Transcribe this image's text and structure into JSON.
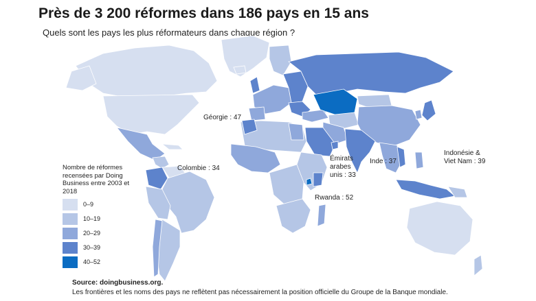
{
  "title": "Près de 3 200 réformes dans 186 pays en 15 ans",
  "subtitle": "Quels sont les pays les plus réformateurs dans chaque région ?",
  "colors": {
    "c0": "#d6dff0",
    "c1": "#b5c6e6",
    "c2": "#8fa8db",
    "c3": "#5d83cc",
    "c4": "#0b6cc2",
    "ocean": "#ffffff",
    "border": "#ffffff"
  },
  "legend": {
    "title": "Nombre de réformes recensées par Doing Business entre 2003 et 2018",
    "items": [
      {
        "label": "0–9",
        "color": "#d6dff0"
      },
      {
        "label": "10–19",
        "color": "#b5c6e6"
      },
      {
        "label": "20–29",
        "color": "#8fa8db"
      },
      {
        "label": "30–39",
        "color": "#5d83cc"
      },
      {
        "label": "40–52",
        "color": "#0b6cc2"
      }
    ]
  },
  "annotations": {
    "georgia": "Géorgie : 47",
    "colombia": "Colombie : 34",
    "uae": "Émirats arabes unis : 33",
    "india": "Inde : 37",
    "rwanda": "Rwanda : 52",
    "indonesia": "Indonésie & Viet Nam : 39"
  },
  "source": "Source: doingbusiness.org.",
  "note": "Les frontières et les noms des pays ne reflètent pas nécessairement la position officielle du Groupe de la Banque mondiale."
}
